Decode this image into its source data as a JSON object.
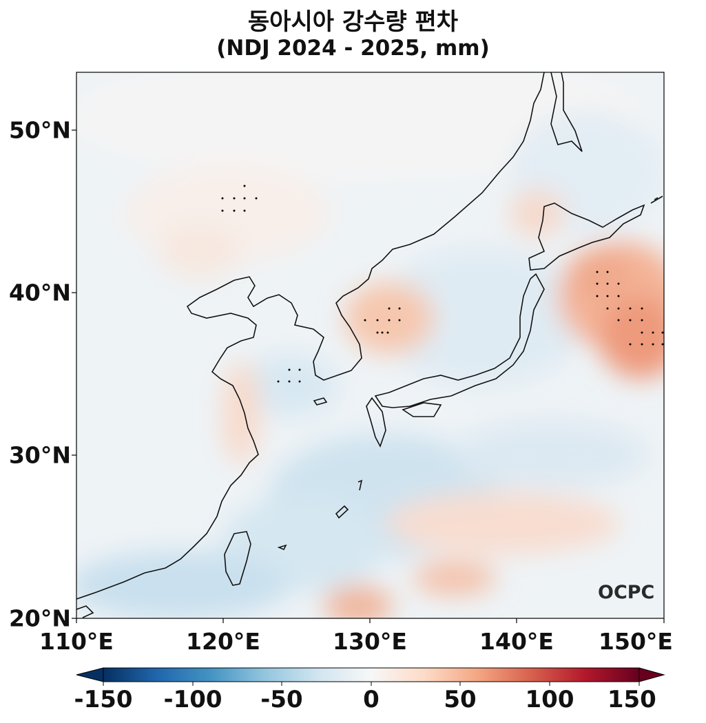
{
  "title": {
    "line1": "동아시아 강수량 편차",
    "line2": "(NDJ 2024 - 2025, mm)"
  },
  "map": {
    "region": "East Asia",
    "lat_range": [
      20,
      53.5
    ],
    "lon_range": [
      110,
      150
    ],
    "lat_ticks": [
      {
        "value": 50,
        "label": "50°N"
      },
      {
        "value": 40,
        "label": "40°N"
      },
      {
        "value": 30,
        "label": "30°N"
      },
      {
        "value": 20,
        "label": "20°N"
      }
    ],
    "lon_ticks": [
      {
        "value": 110,
        "label": "110°E"
      },
      {
        "value": 120,
        "label": "120°E"
      },
      {
        "value": 130,
        "label": "130°E"
      },
      {
        "value": 140,
        "label": "140°E"
      },
      {
        "value": 150,
        "label": "150°E"
      }
    ],
    "stippling": "statistically significant areas marked with dots"
  },
  "colorbar": {
    "colormap": "RdBu_r",
    "range": [
      -150,
      150
    ],
    "extend": "both",
    "ticks": [
      {
        "value": -150,
        "label": "-150"
      },
      {
        "value": -100,
        "label": "-100"
      },
      {
        "value": -50,
        "label": "-50"
      },
      {
        "value": 0,
        "label": "0"
      },
      {
        "value": 50,
        "label": "50"
      },
      {
        "value": 100,
        "label": "100"
      },
      {
        "value": 150,
        "label": "150"
      }
    ],
    "colors": [
      "#053061",
      "#2166ac",
      "#4393c3",
      "#92c5de",
      "#d1e5f0",
      "#f7f7f7",
      "#fddbc7",
      "#f4a582",
      "#d6604d",
      "#b2182b",
      "#67001f"
    ]
  },
  "logo": {
    "text": "OCPC"
  }
}
